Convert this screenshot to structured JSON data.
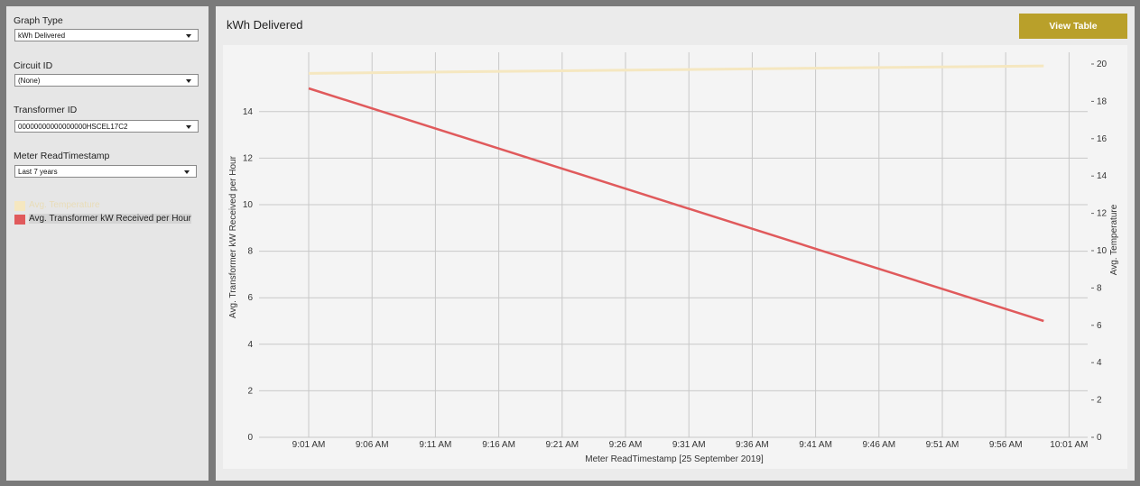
{
  "sidebar": {
    "graph_type": {
      "label": "Graph Type",
      "value": "kWh Delivered"
    },
    "circuit_id": {
      "label": "Circuit ID",
      "value": "(None)"
    },
    "transformer_id": {
      "label": "Transformer ID",
      "value": "00000000000000000HSCEL17C2"
    },
    "meter_read": {
      "label": "Meter ReadTimestamp",
      "value": "Last 7 years"
    },
    "legend": [
      {
        "label": "Avg. Temperature",
        "color": "#f5e7c0",
        "text_color": "#e8dcb8"
      },
      {
        "label": "Avg. Transformer kW Received per Hour",
        "color": "#e05a5c",
        "text_color": "#222222"
      }
    ]
  },
  "main": {
    "title": "kWh Delivered",
    "view_table_label": "View Table",
    "accent": "#b9a02a"
  },
  "chart_data": {
    "type": "line",
    "title": "",
    "xlabel": "Meter ReadTimestamp [25 September 2019]",
    "ylabel": "Avg. Transformer kW Received per Hour",
    "y2label": "Avg. Temperature",
    "x_ticks": [
      "9:01 AM",
      "9:06 AM",
      "9:11 AM",
      "9:16 AM",
      "9:21 AM",
      "9:26 AM",
      "9:31 AM",
      "9:36 AM",
      "9:41 AM",
      "9:46 AM",
      "9:51 AM",
      "9:56 AM",
      "10:01 AM"
    ],
    "x_range": [
      "9:01 AM",
      "10:01 AM"
    ],
    "ylim": [
      0,
      15
    ],
    "y_ticks": [
      0,
      2,
      4,
      6,
      8,
      10,
      12,
      14
    ],
    "y2lim": [
      0,
      20
    ],
    "y2_ticks": [
      0,
      2,
      4,
      6,
      8,
      10,
      12,
      14,
      16,
      18,
      20
    ],
    "grid": true,
    "series": [
      {
        "name": "Avg. Transformer kW Received per Hour",
        "axis": "left",
        "color": "#e05a5c",
        "x": [
          "9:01 AM",
          "9:59 AM"
        ],
        "values": [
          15,
          5
        ]
      },
      {
        "name": "Avg. Temperature",
        "axis": "right",
        "color": "#f5e7c0",
        "x": [
          "9:01 AM",
          "9:59 AM"
        ],
        "values": [
          19.5,
          19.9
        ]
      }
    ]
  }
}
